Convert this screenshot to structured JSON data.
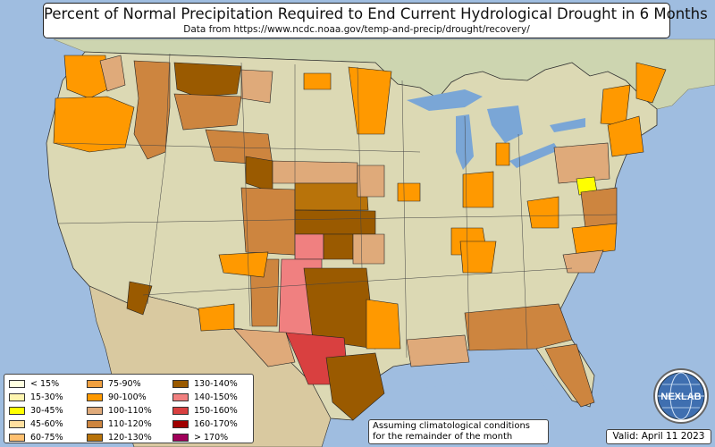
{
  "title": {
    "main": "Percent of Normal Precipitation Required to End Current Hydrological Drought in 6 Months",
    "source": "Data from https://www.ncdc.noaa.gov/temp-and-precip/drought/recovery/"
  },
  "legend": {
    "items": [
      {
        "label": "< 15%",
        "color": "#ffffe0"
      },
      {
        "label": "15-30%",
        "color": "#fff5b0"
      },
      {
        "label": "30-45%",
        "color": "#ffff00"
      },
      {
        "label": "45-60%",
        "color": "#ffe0a0"
      },
      {
        "label": "60-75%",
        "color": "#ffc070"
      },
      {
        "label": "75-90%",
        "color": "#f0a040"
      },
      {
        "label": "90-100%",
        "color": "#ff9900"
      },
      {
        "label": "100-110%",
        "color": "#dfaa7a"
      },
      {
        "label": "110-120%",
        "color": "#cd853f"
      },
      {
        "label": "120-130%",
        "color": "#b8730a"
      },
      {
        "label": "130-140%",
        "color": "#9a5a00"
      },
      {
        "label": "140-150%",
        "color": "#f08080"
      },
      {
        "label": "150-160%",
        "color": "#d94040"
      },
      {
        "label": "160-170%",
        "color": "#a00000"
      },
      {
        "label": "> 170%",
        "color": "#a0005a"
      }
    ]
  },
  "note": {
    "line1": "Assuming climatological conditions",
    "line2": "for the remainder of the month"
  },
  "valid": "Valid: April 11 2023",
  "logo": {
    "text": "NEXLAB",
    "icon": "globe-logo"
  },
  "colors": {
    "ocean": "#9fbde0",
    "land": "#dcd9b4",
    "land_canada": "#cdd5b0",
    "mexico": "#d9c9a0",
    "water_lakes": "#7aa6d6"
  }
}
